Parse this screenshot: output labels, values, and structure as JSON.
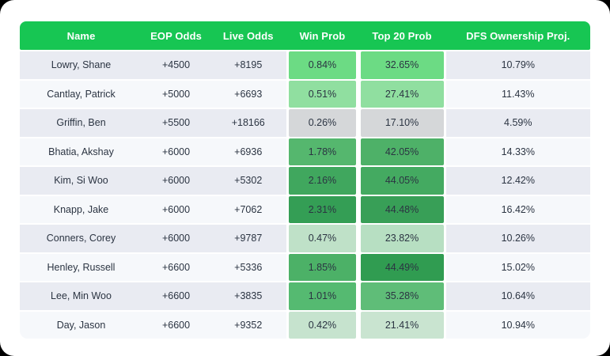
{
  "theme": {
    "page_bg": "#000000",
    "canvas_bg": "#ffffff",
    "header_bg": "#17C653",
    "header_text": "#ffffff",
    "row_odd_bg": "#E9EBF2",
    "row_even_bg": "#F6F8FB",
    "body_text": "#2B3442"
  },
  "table": {
    "columns": [
      "Name",
      "EOP Odds",
      "Live Odds",
      "Win Prob",
      "Top 20 Prob",
      "DFS Ownership Proj."
    ],
    "rows": [
      {
        "name": "Lowry, Shane",
        "eop_odds": "+4500",
        "live_odds": "+8195",
        "win_prob": "0.84%",
        "win_prob_color": "#6CDB84",
        "top20_prob": "32.65%",
        "top20_prob_color": "#6CDB84",
        "dfs_ownership": "10.79%"
      },
      {
        "name": "Cantlay, Patrick",
        "eop_odds": "+5000",
        "live_odds": "+6693",
        "win_prob": "0.51%",
        "win_prob_color": "#90DFA0",
        "top20_prob": "27.41%",
        "top20_prob_color": "#90DFA0",
        "dfs_ownership": "11.43%"
      },
      {
        "name": "Griffin, Ben",
        "eop_odds": "+5500",
        "live_odds": "+18166",
        "win_prob": "0.26%",
        "win_prob_color": "#D5D7D9",
        "top20_prob": "17.10%",
        "top20_prob_color": "#D5D7D9",
        "dfs_ownership": "4.59%"
      },
      {
        "name": "Bhatia, Akshay",
        "eop_odds": "+6000",
        "live_odds": "+6936",
        "win_prob": "1.78%",
        "win_prob_color": "#55B76E",
        "top20_prob": "42.05%",
        "top20_prob_color": "#4EB168",
        "dfs_ownership": "14.33%"
      },
      {
        "name": "Kim, Si Woo",
        "eop_odds": "+6000",
        "live_odds": "+5302",
        "win_prob": "2.16%",
        "win_prob_color": "#40A75E",
        "top20_prob": "44.05%",
        "top20_prob_color": "#44AA61",
        "dfs_ownership": "12.42%"
      },
      {
        "name": "Knapp, Jake",
        "eop_odds": "+6000",
        "live_odds": "+7062",
        "win_prob": "2.31%",
        "win_prob_color": "#349E55",
        "top20_prob": "44.48%",
        "top20_prob_color": "#389F57",
        "dfs_ownership": "16.42%"
      },
      {
        "name": "Conners, Corey",
        "eop_odds": "+6000",
        "live_odds": "+9787",
        "win_prob": "0.47%",
        "win_prob_color": "#BFE1C8",
        "top20_prob": "23.82%",
        "top20_prob_color": "#B7DFC2",
        "dfs_ownership": "10.26%"
      },
      {
        "name": "Henley, Russell",
        "eop_odds": "+6600",
        "live_odds": "+5336",
        "win_prob": "1.85%",
        "win_prob_color": "#4CB167",
        "top20_prob": "44.49%",
        "top20_prob_color": "#309C51",
        "dfs_ownership": "15.02%"
      },
      {
        "name": "Lee, Min Woo",
        "eop_odds": "+6600",
        "live_odds": "+3835",
        "win_prob": "1.01%",
        "win_prob_color": "#55BA71",
        "top20_prob": "35.28%",
        "top20_prob_color": "#5FBD78",
        "dfs_ownership": "10.64%"
      },
      {
        "name": "Day, Jason",
        "eop_odds": "+6600",
        "live_odds": "+9352",
        "win_prob": "0.42%",
        "win_prob_color": "#C6E3CE",
        "top20_prob": "21.41%",
        "top20_prob_color": "#C9E4D0",
        "dfs_ownership": "10.94%"
      }
    ]
  }
}
